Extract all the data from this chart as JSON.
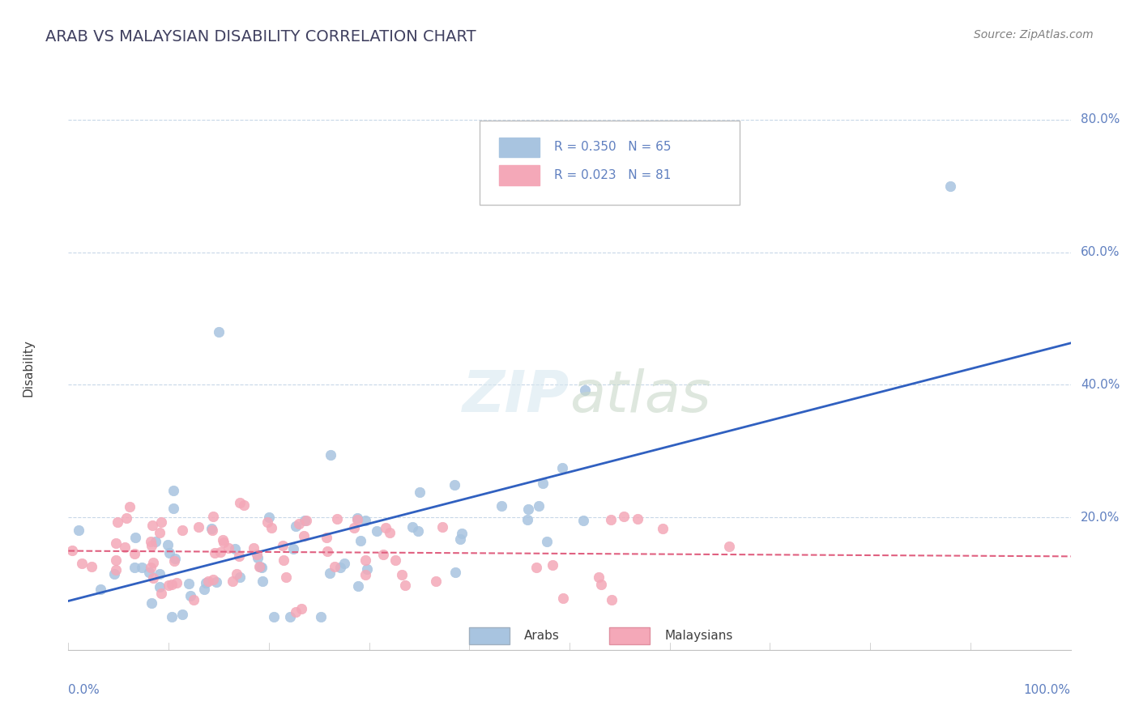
{
  "title": "ARAB VS MALAYSIAN DISABILITY CORRELATION CHART",
  "source": "Source: ZipAtlas.com",
  "ylabel": "Disability",
  "xlim": [
    0.0,
    1.0
  ],
  "ylim": [
    0.0,
    0.85
  ],
  "legend_arab_R": "0.350",
  "legend_arab_N": "65",
  "legend_malay_R": "0.023",
  "legend_malay_N": "81",
  "arab_color": "#a8c4e0",
  "malay_color": "#f4a8b8",
  "arab_line_color": "#3060c0",
  "malay_line_color": "#e06080",
  "title_color": "#404060",
  "axis_label_color": "#6080c0",
  "grid_color": "#c8d8e8",
  "background_color": "#ffffff"
}
